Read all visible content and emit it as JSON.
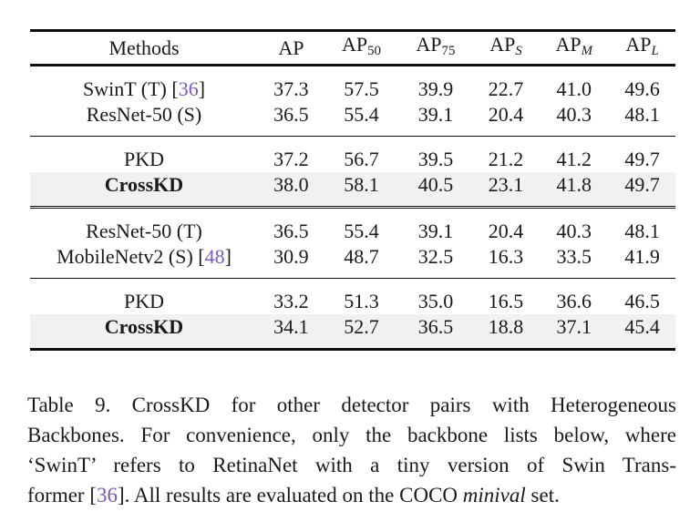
{
  "colors": {
    "citation": "#7a5ab5",
    "row_highlight": "#f1f1f1",
    "rule": "#0f0f0f",
    "text": "#1a1a1a",
    "background": "#ffffff"
  },
  "table": {
    "columns": [
      {
        "label": "Methods",
        "sub": null,
        "sub_italic": false
      },
      {
        "label": "AP",
        "sub": null,
        "sub_italic": false
      },
      {
        "label": "AP",
        "sub": "50",
        "sub_italic": false
      },
      {
        "label": "AP",
        "sub": "75",
        "sub_italic": false
      },
      {
        "label": "AP",
        "sub": "S",
        "sub_italic": true
      },
      {
        "label": "AP",
        "sub": "M",
        "sub_italic": true
      },
      {
        "label": "AP",
        "sub": "L",
        "sub_italic": true
      }
    ],
    "groups": [
      {
        "rows": [
          {
            "method": "SwinT (T)",
            "cite": "36",
            "bold": false,
            "highlight": false,
            "values": [
              "37.3",
              "57.5",
              "39.9",
              "22.7",
              "41.0",
              "49.6"
            ]
          },
          {
            "method": "ResNet-50 (S)",
            "cite": null,
            "bold": false,
            "highlight": false,
            "values": [
              "36.5",
              "55.4",
              "39.1",
              "20.4",
              "40.3",
              "48.1"
            ]
          }
        ],
        "rule_after": "thin"
      },
      {
        "rows": [
          {
            "method": "PKD",
            "cite": null,
            "bold": false,
            "highlight": false,
            "values": [
              "37.2",
              "56.7",
              "39.5",
              "21.2",
              "41.2",
              "49.7"
            ]
          },
          {
            "method": "CrossKD",
            "cite": null,
            "bold": true,
            "highlight": true,
            "values": [
              "38.0",
              "58.1",
              "40.5",
              "23.1",
              "41.8",
              "49.7"
            ]
          }
        ],
        "rule_after": "double"
      },
      {
        "rows": [
          {
            "method": "ResNet-50 (T)",
            "cite": null,
            "bold": false,
            "highlight": false,
            "values": [
              "36.5",
              "55.4",
              "39.1",
              "20.4",
              "40.3",
              "48.1"
            ]
          },
          {
            "method": "MobileNetv2 (S)",
            "cite": "48",
            "bold": false,
            "highlight": false,
            "values": [
              "30.9",
              "48.7",
              "32.5",
              "16.3",
              "33.5",
              "41.9"
            ]
          }
        ],
        "rule_after": "thin"
      },
      {
        "rows": [
          {
            "method": "PKD",
            "cite": null,
            "bold": false,
            "highlight": false,
            "values": [
              "33.2",
              "51.3",
              "35.0",
              "16.5",
              "36.6",
              "46.5"
            ]
          },
          {
            "method": "CrossKD",
            "cite": null,
            "bold": true,
            "highlight": true,
            "values": [
              "34.1",
              "52.7",
              "36.5",
              "18.8",
              "37.1",
              "45.4"
            ]
          }
        ],
        "rule_after": "bottom"
      }
    ]
  },
  "caption": {
    "lines": [
      [
        {
          "t": "Table 9. CrossKD for other detector pairs with Heterogeneous",
          "s": "n"
        }
      ],
      [
        {
          "t": "Backbones. For convenience, only the backbone lists below, where",
          "s": "n"
        }
      ],
      [
        {
          "t": "‘SwinT’ refers to RetinaNet with a tiny version of Swin Trans-",
          "s": "n"
        }
      ],
      [
        {
          "t": "former [",
          "s": "n"
        },
        {
          "t": "36",
          "s": "cite"
        },
        {
          "t": "]. All results are evaluated on the COCO ",
          "s": "n"
        },
        {
          "t": "minival",
          "s": "i"
        },
        {
          "t": " set.",
          "s": "n"
        }
      ]
    ]
  }
}
